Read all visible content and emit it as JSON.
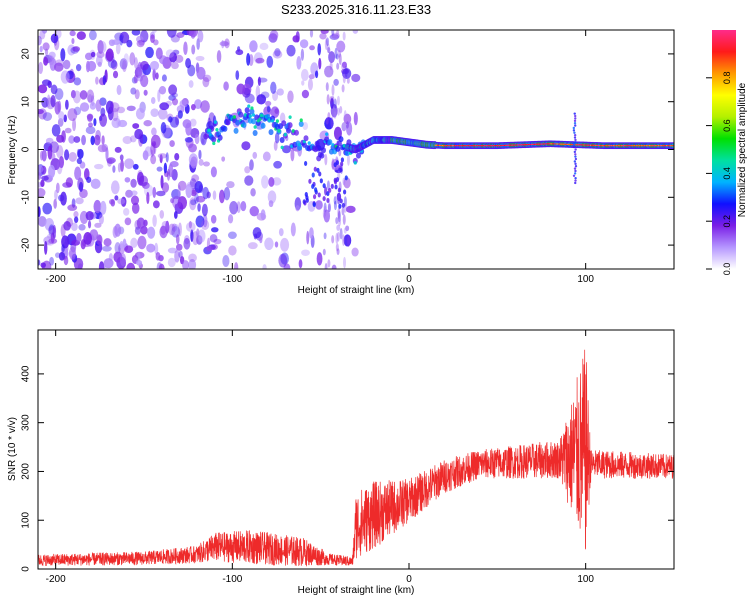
{
  "figure_title": "S233.2025.316.11.23.E33",
  "chart_data": [
    {
      "type": "heatmap",
      "title": "S233.2025.316.11.23.E33",
      "xlabel": "Height of straight line (km)",
      "ylabel": "Frequency (Hz)",
      "xlim": [
        -210,
        150
      ],
      "ylim": [
        -25,
        25
      ],
      "x_ticks": [
        -200,
        -100,
        0,
        100
      ],
      "y_ticks": [
        -20,
        -10,
        0,
        10,
        20
      ],
      "colorbar": {
        "label": "Normalized spectral amplitude",
        "range": [
          0.0,
          1.0
        ],
        "ticks": [
          "0.0",
          "0.2",
          "0.4",
          "0.6",
          "0.8"
        ],
        "colors": [
          "#ffffff",
          "#b596ff",
          "#7a1ee6",
          "#1010ff",
          "#00b4ff",
          "#00e0a0",
          "#00e000",
          "#b4f000",
          "#ffff00",
          "#ff9900",
          "#ff1a1a",
          "#ff2b8a"
        ]
      },
      "ridge": {
        "description_free": true,
        "points": [
          {
            "x": -110,
            "y": 4
          },
          {
            "x": -100,
            "y": 6
          },
          {
            "x": -92,
            "y": 7
          },
          {
            "x": -85,
            "y": 6
          },
          {
            "x": -78,
            "y": 5
          },
          {
            "x": -70,
            "y": 4
          },
          {
            "x": -62,
            "y": 3
          },
          {
            "x": -55,
            "y": 1
          },
          {
            "x": -48,
            "y": -1
          },
          {
            "x": -40,
            "y": 1
          },
          {
            "x": -30,
            "y": 0
          },
          {
            "x": -20,
            "y": 2
          },
          {
            "x": -10,
            "y": 2
          },
          {
            "x": 0,
            "y": 1.5
          },
          {
            "x": 10,
            "y": 1
          },
          {
            "x": 20,
            "y": 0.8
          },
          {
            "x": 50,
            "y": 0.8
          },
          {
            "x": 80,
            "y": 1.2
          },
          {
            "x": 95,
            "y": 1
          },
          {
            "x": 110,
            "y": 0.8
          },
          {
            "x": 150,
            "y": 0.8
          }
        ]
      }
    },
    {
      "type": "line",
      "xlabel": "Height of straight line (km)",
      "ylabel": "SNR (10 * v/v)",
      "xlim": [
        -210,
        150
      ],
      "ylim": [
        0,
        490
      ],
      "x_ticks": [
        -200,
        -100,
        0,
        100
      ],
      "y_ticks": [
        0,
        100,
        200,
        300,
        400
      ],
      "line_color": "#ee2a2a",
      "series": [
        {
          "name": "SNR",
          "envelope": [
            {
              "x": -210,
              "mean": 18,
              "noise": 12
            },
            {
              "x": -150,
              "mean": 22,
              "noise": 14
            },
            {
              "x": -120,
              "mean": 30,
              "noise": 18
            },
            {
              "x": -110,
              "mean": 45,
              "noise": 30
            },
            {
              "x": -90,
              "mean": 45,
              "noise": 35
            },
            {
              "x": -60,
              "mean": 35,
              "noise": 30
            },
            {
              "x": -45,
              "mean": 20,
              "noise": 12
            },
            {
              "x": -32,
              "mean": 15,
              "noise": 10
            },
            {
              "x": -30,
              "mean": 90,
              "noise": 70
            },
            {
              "x": -20,
              "mean": 110,
              "noise": 70
            },
            {
              "x": 0,
              "mean": 140,
              "noise": 45
            },
            {
              "x": 20,
              "mean": 190,
              "noise": 35
            },
            {
              "x": 40,
              "mean": 215,
              "noise": 30
            },
            {
              "x": 85,
              "mean": 225,
              "noise": 40
            },
            {
              "x": 92,
              "mean": 230,
              "noise": 120
            },
            {
              "x": 100,
              "mean": 240,
              "noise": 220
            },
            {
              "x": 103,
              "mean": 215,
              "noise": 30
            },
            {
              "x": 150,
              "mean": 210,
              "noise": 25
            }
          ]
        }
      ]
    }
  ]
}
